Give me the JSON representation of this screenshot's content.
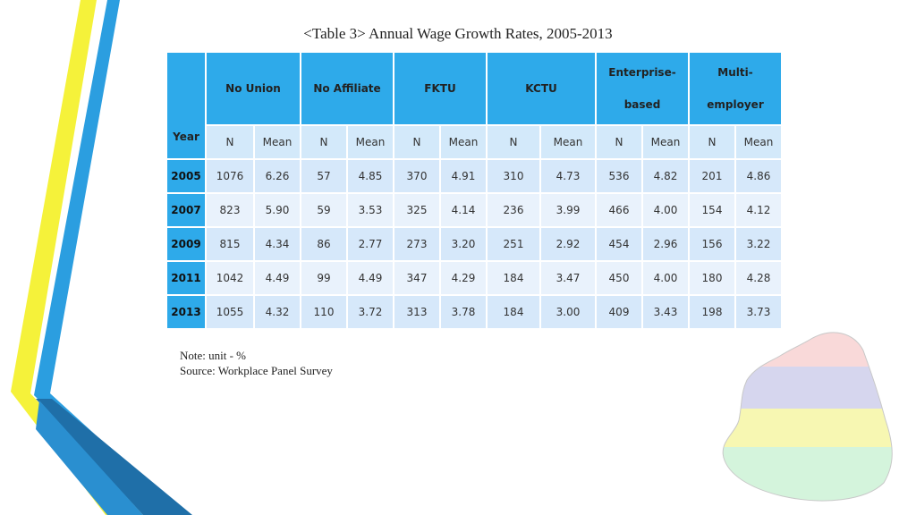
{
  "title": "<Table 3> Annual Wage Growth Rates, 2005-2013",
  "table": {
    "year_header": "Year",
    "groups": [
      {
        "line1": "No Union",
        "line2": ""
      },
      {
        "line1": "No Affiliate",
        "line2": ""
      },
      {
        "line1": "FKTU",
        "line2": ""
      },
      {
        "line1": "KCTU",
        "line2": ""
      },
      {
        "line1": "Enterprise-",
        "line2": "based"
      },
      {
        "line1": "Multi-",
        "line2": "employer"
      }
    ],
    "sub_n": "N",
    "sub_mean": "Mean",
    "rows": [
      {
        "year": "2005",
        "cells": [
          "1076",
          "6.26",
          "57",
          "4.85",
          "370",
          "4.91",
          "310",
          "4.73",
          "536",
          "4.82",
          "201",
          "4.86"
        ]
      },
      {
        "year": "2007",
        "cells": [
          "823",
          "5.90",
          "59",
          "3.53",
          "325",
          "4.14",
          "236",
          "3.99",
          "466",
          "4.00",
          "154",
          "4.12"
        ]
      },
      {
        "year": "2009",
        "cells": [
          "815",
          "4.34",
          "86",
          "2.77",
          "273",
          "3.20",
          "251",
          "2.92",
          "454",
          "2.96",
          "156",
          "3.22"
        ]
      },
      {
        "year": "2011",
        "cells": [
          "1042",
          "4.49",
          "99",
          "4.49",
          "347",
          "4.29",
          "184",
          "3.47",
          "450",
          "4.00",
          "180",
          "4.28"
        ]
      },
      {
        "year": "2013",
        "cells": [
          "1055",
          "4.32",
          "110",
          "3.72",
          "313",
          "3.78",
          "184",
          "3.00",
          "409",
          "3.43",
          "198",
          "3.73"
        ]
      }
    ]
  },
  "note_unit": "Note: unit - %",
  "note_source": "Source: Workplace Panel Survey",
  "colors": {
    "header_blue": "#2eaaea",
    "row_odd": "#d6e8fa",
    "row_even": "#e9f2fc",
    "stripe_yellow": "#f5f23a",
    "stripe_blue": "#2b9ee0",
    "map_pink": "#f9d9d9",
    "map_lavender": "#d6d6ee",
    "map_yellow": "#f7f7b2",
    "map_mint": "#d4f4dc"
  }
}
